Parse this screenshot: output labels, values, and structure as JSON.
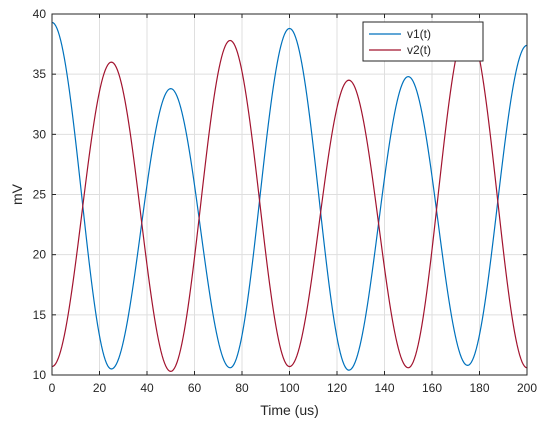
{
  "chart_data": {
    "type": "line",
    "title": "",
    "xlabel": "Time (us)",
    "ylabel": "mV",
    "xlim": [
      0,
      200
    ],
    "ylim": [
      10,
      40
    ],
    "xticks": [
      0,
      20,
      40,
      60,
      80,
      100,
      120,
      140,
      160,
      180,
      200
    ],
    "yticks": [
      10,
      15,
      20,
      25,
      30,
      35,
      40
    ],
    "grid": true,
    "legend_position": "top-right",
    "series": [
      {
        "name": "v1(t)",
        "color": "#0072BD",
        "x": [
          0,
          12.5,
          25,
          37.5,
          50,
          62.5,
          75,
          87.5,
          100,
          112.5,
          125,
          137.5,
          150,
          162.5,
          175,
          187.5,
          200
        ],
        "y": [
          39.3,
          24.9,
          10.5,
          22.2,
          33.8,
          22.2,
          10.6,
          24.7,
          38.8,
          24.6,
          10.4,
          22.6,
          34.8,
          22.8,
          10.8,
          24.1,
          37.4
        ]
      },
      {
        "name": "v2(t)",
        "color": "#A2142F",
        "x": [
          0,
          12.5,
          25,
          37.5,
          50,
          62.5,
          75,
          87.5,
          100,
          112.5,
          125,
          137.5,
          150,
          162.5,
          175,
          187.5,
          200
        ],
        "y": [
          10.7,
          23.3,
          36.0,
          23.1,
          10.3,
          24.0,
          37.8,
          24.3,
          10.7,
          22.6,
          34.5,
          22.6,
          10.6,
          24.8,
          39.0,
          24.8,
          10.6
        ]
      }
    ]
  }
}
